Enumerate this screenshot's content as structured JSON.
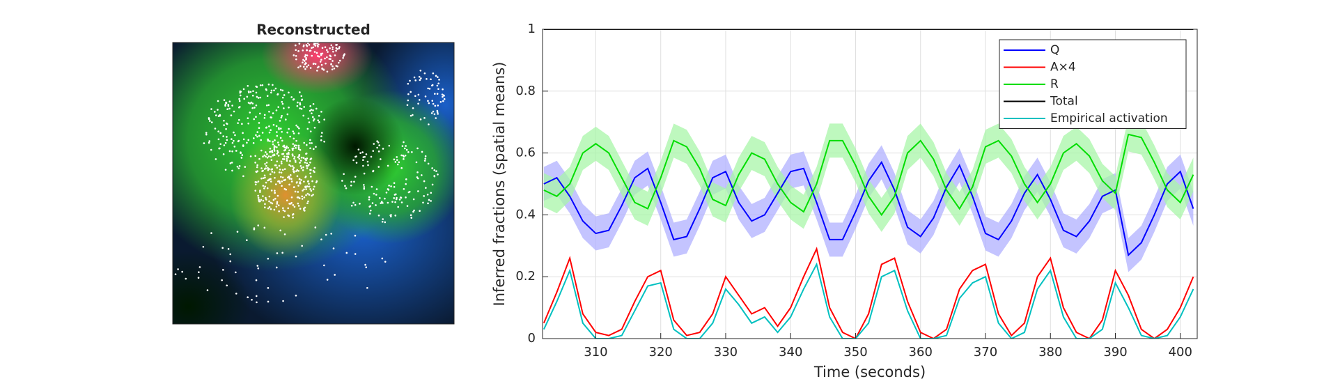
{
  "chart_data": [
    {
      "type": "image",
      "title": "Reconstructed"
    },
    {
      "type": "line",
      "xlabel": "Time (seconds)",
      "ylabel": "Inferred fractions (spatial means)",
      "x": [
        302,
        304,
        306,
        308,
        310,
        312,
        314,
        316,
        318,
        320,
        322,
        324,
        326,
        328,
        330,
        332,
        334,
        336,
        338,
        340,
        342,
        344,
        346,
        348,
        350,
        352,
        354,
        356,
        358,
        360,
        362,
        364,
        366,
        368,
        370,
        372,
        374,
        376,
        378,
        380,
        382,
        384,
        386,
        388,
        390,
        392,
        394,
        396,
        398,
        400,
        402
      ],
      "series": [
        {
          "name": "Q",
          "color": "#0000ff",
          "band_color": "#b0b0ff",
          "spread": 0.055,
          "values": [
            0.5,
            0.52,
            0.46,
            0.38,
            0.34,
            0.35,
            0.43,
            0.52,
            0.55,
            0.44,
            0.32,
            0.33,
            0.42,
            0.52,
            0.54,
            0.44,
            0.38,
            0.4,
            0.47,
            0.54,
            0.55,
            0.44,
            0.32,
            0.32,
            0.41,
            0.51,
            0.57,
            0.48,
            0.36,
            0.33,
            0.39,
            0.49,
            0.56,
            0.46,
            0.34,
            0.32,
            0.38,
            0.47,
            0.53,
            0.45,
            0.35,
            0.33,
            0.38,
            0.46,
            0.48,
            0.27,
            0.31,
            0.4,
            0.5,
            0.54,
            0.42
          ]
        },
        {
          "name": "A×4",
          "color": "#ff0000",
          "values": [
            0.05,
            0.15,
            0.26,
            0.08,
            0.02,
            0.01,
            0.03,
            0.12,
            0.2,
            0.22,
            0.06,
            0.01,
            0.02,
            0.08,
            0.2,
            0.14,
            0.08,
            0.1,
            0.04,
            0.1,
            0.2,
            0.29,
            0.1,
            0.02,
            0.0,
            0.08,
            0.24,
            0.26,
            0.12,
            0.02,
            0.0,
            0.03,
            0.16,
            0.22,
            0.24,
            0.08,
            0.01,
            0.05,
            0.2,
            0.26,
            0.1,
            0.02,
            0.0,
            0.06,
            0.22,
            0.14,
            0.03,
            0.0,
            0.03,
            0.1,
            0.2
          ]
        },
        {
          "name": "R",
          "color": "#00dd00",
          "band_color": "#a8f5a8",
          "spread": 0.055,
          "values": [
            0.48,
            0.46,
            0.5,
            0.6,
            0.63,
            0.6,
            0.52,
            0.44,
            0.42,
            0.52,
            0.64,
            0.62,
            0.55,
            0.45,
            0.43,
            0.53,
            0.6,
            0.58,
            0.5,
            0.44,
            0.41,
            0.5,
            0.64,
            0.64,
            0.56,
            0.46,
            0.4,
            0.46,
            0.6,
            0.64,
            0.58,
            0.48,
            0.42,
            0.49,
            0.62,
            0.64,
            0.59,
            0.5,
            0.44,
            0.5,
            0.6,
            0.63,
            0.59,
            0.51,
            0.47,
            0.66,
            0.65,
            0.57,
            0.48,
            0.44,
            0.53
          ]
        },
        {
          "name": "Total",
          "color": "#000000",
          "values": [
            1,
            1,
            1,
            1,
            1,
            1,
            1,
            1,
            1,
            1,
            1,
            1,
            1,
            1,
            1,
            1,
            1,
            1,
            1,
            1,
            1,
            1,
            1,
            1,
            1,
            1,
            1,
            1,
            1,
            1,
            1,
            1,
            1,
            1,
            1,
            1,
            1,
            1,
            1,
            1,
            1,
            1,
            1,
            1,
            1,
            1,
            1,
            1,
            1,
            1,
            1
          ]
        },
        {
          "name": "Empirical activation",
          "color": "#00c0c0",
          "values": [
            0.03,
            0.12,
            0.22,
            0.05,
            0.0,
            0.0,
            0.01,
            0.09,
            0.17,
            0.18,
            0.03,
            0.0,
            0.0,
            0.05,
            0.16,
            0.11,
            0.05,
            0.07,
            0.02,
            0.07,
            0.16,
            0.24,
            0.07,
            0.0,
            0.0,
            0.05,
            0.2,
            0.22,
            0.09,
            0.0,
            0.0,
            0.01,
            0.13,
            0.18,
            0.2,
            0.05,
            0.0,
            0.02,
            0.16,
            0.22,
            0.07,
            0.0,
            0.0,
            0.03,
            0.18,
            0.1,
            0.01,
            0.0,
            0.01,
            0.07,
            0.16
          ]
        }
      ],
      "xlim": [
        301.8,
        402.6
      ],
      "ylim": [
        0,
        1
      ],
      "xticks": [
        310,
        320,
        330,
        340,
        350,
        360,
        370,
        380,
        390,
        400
      ],
      "yticks": [
        0,
        0.2,
        0.4,
        0.6,
        0.8,
        1
      ],
      "grid": true,
      "legend": "upper right"
    }
  ]
}
